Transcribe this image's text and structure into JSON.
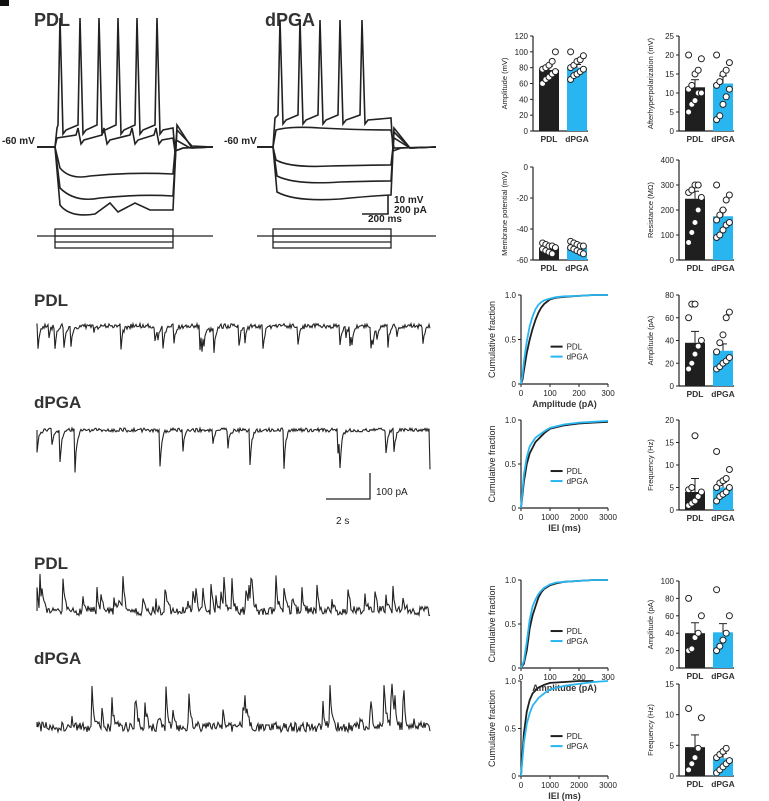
{
  "colors": {
    "pdl": "#1f1f1f",
    "dpga": "#29b6f0"
  },
  "panel_a": {
    "title_pdl": "PDL",
    "title_dpga": "dPGA",
    "rest_label_pdl": "-60 mV",
    "rest_label_dpga": "-60 mV",
    "scale_v": "10 mV",
    "scale_i": "200 pA",
    "scale_t": "200 ms"
  },
  "panel_b": {
    "title_pdl": "PDL",
    "title_dpga": "dPGA",
    "scale_y": "100 pA",
    "scale_x": "2 s"
  },
  "panel_c": {
    "title_pdl": "PDL",
    "title_dpga": "dPGA"
  },
  "chart_data": [
    {
      "type": "bar",
      "id": "ap-amplitude",
      "categories": [
        "PDL",
        "dPGA"
      ],
      "values": [
        77,
        80
      ],
      "errors": [
        5,
        4
      ],
      "points": [
        [
          60,
          65,
          68,
          72,
          75,
          78,
          80,
          83,
          88,
          100
        ],
        [
          65,
          70,
          72,
          75,
          78,
          80,
          83,
          88,
          90,
          95,
          100
        ]
      ],
      "ylabel": "Amplitude (mV)",
      "ylim": [
        0,
        120
      ],
      "yticks": [
        0,
        20,
        40,
        60,
        80,
        100,
        120
      ]
    },
    {
      "type": "bar",
      "id": "afterhyperpolarization",
      "categories": [
        "PDL",
        "dPGA"
      ],
      "values": [
        11.5,
        12.5
      ],
      "errors": [
        2,
        2
      ],
      "points": [
        [
          5,
          7,
          8,
          10,
          10,
          11,
          12,
          15,
          16,
          19,
          20
        ],
        [
          3,
          4,
          7,
          9,
          11,
          12,
          13,
          15,
          16,
          18,
          20
        ]
      ],
      "ylabel": "Afterhyperpolarization (mV)",
      "ylim": [
        0,
        25
      ],
      "yticks": [
        0,
        5,
        10,
        15,
        20,
        25
      ]
    },
    {
      "type": "bar",
      "id": "membrane-potential",
      "categories": [
        "PDL",
        "dPGA"
      ],
      "values": [
        -52,
        -52
      ],
      "errors": [
        1.5,
        1.5
      ],
      "points": [
        [
          -49,
          -50,
          -51,
          -51,
          -52,
          -53,
          -54,
          -55,
          -56
        ],
        [
          -48,
          -49,
          -50,
          -51,
          -51,
          -52,
          -53,
          -54,
          -55,
          -56
        ]
      ],
      "ylabel": "Membrane potential (mV)",
      "ylim": [
        -60,
        0
      ],
      "yticks": [
        -60,
        -40,
        -20,
        0
      ]
    },
    {
      "type": "bar",
      "id": "resistance",
      "categories": [
        "PDL",
        "dPGA"
      ],
      "values": [
        245,
        175
      ],
      "errors": [
        30,
        25
      ],
      "points": [
        [
          70,
          110,
          150,
          200,
          250,
          270,
          280,
          300,
          300
        ],
        [
          90,
          100,
          120,
          140,
          150,
          160,
          180,
          200,
          240,
          260,
          300
        ]
      ],
      "ylabel": "Resistance (MΩ)",
      "ylim": [
        0,
        400
      ],
      "yticks": [
        0,
        100,
        200,
        300,
        400
      ]
    },
    {
      "type": "line",
      "id": "b-cumulative-amplitude",
      "series": [
        {
          "name": "PDL",
          "x": [
            0,
            5,
            10,
            20,
            30,
            40,
            50,
            60,
            70,
            80,
            100,
            120,
            150,
            200,
            250,
            300
          ],
          "y": [
            0,
            0.05,
            0.15,
            0.35,
            0.5,
            0.62,
            0.72,
            0.8,
            0.86,
            0.9,
            0.95,
            0.97,
            0.98,
            0.99,
            1,
            1
          ]
        },
        {
          "name": "dPGA",
          "x": [
            0,
            5,
            10,
            20,
            30,
            40,
            50,
            60,
            70,
            80,
            100,
            120,
            150,
            200,
            250,
            300
          ],
          "y": [
            0,
            0.1,
            0.25,
            0.48,
            0.65,
            0.76,
            0.84,
            0.89,
            0.92,
            0.94,
            0.96,
            0.975,
            0.985,
            0.99,
            1,
            1
          ]
        }
      ],
      "xlabel": "Amplitude (pA)",
      "ylabel": "Cumulative fraction",
      "xlim": [
        0,
        300
      ],
      "ylim": [
        0,
        1
      ],
      "xticks": [
        0,
        100,
        200,
        300
      ],
      "yticks": [
        0,
        0.5,
        1.0
      ]
    },
    {
      "type": "bar",
      "id": "b-amplitude",
      "categories": [
        "PDL",
        "dPGA"
      ],
      "values": [
        38,
        31
      ],
      "errors": [
        10,
        6
      ],
      "points": [
        [
          15,
          20,
          28,
          35,
          40,
          60,
          72,
          72
        ],
        [
          15,
          17,
          20,
          22,
          25,
          30,
          38,
          45,
          60,
          65
        ]
      ],
      "ylabel": "Amplitude (pA)",
      "ylim": [
        0,
        80
      ],
      "yticks": [
        0,
        20,
        40,
        60,
        80
      ]
    },
    {
      "type": "line",
      "id": "b-cumulative-iei",
      "series": [
        {
          "name": "PDL",
          "x": [
            0,
            50,
            100,
            200,
            300,
            500,
            800,
            1000,
            1500,
            2000,
            2500,
            3000
          ],
          "y": [
            0,
            0.15,
            0.3,
            0.5,
            0.62,
            0.75,
            0.85,
            0.9,
            0.94,
            0.96,
            0.97,
            0.98
          ]
        },
        {
          "name": "dPGA",
          "x": [
            0,
            50,
            100,
            200,
            300,
            500,
            800,
            1000,
            1500,
            2000,
            2500,
            3000
          ],
          "y": [
            0,
            0.2,
            0.38,
            0.58,
            0.7,
            0.8,
            0.87,
            0.91,
            0.95,
            0.97,
            0.98,
            0.99
          ]
        }
      ],
      "xlabel": "IEI (ms)",
      "ylabel": "Cumulative fraction",
      "xlim": [
        0,
        3000
      ],
      "ylim": [
        0,
        1
      ],
      "xticks": [
        0,
        1000,
        2000,
        3000
      ],
      "yticks": [
        0,
        0.5,
        1.0
      ]
    },
    {
      "type": "bar",
      "id": "b-frequency",
      "categories": [
        "PDL",
        "dPGA"
      ],
      "values": [
        4,
        5
      ],
      "errors": [
        3,
        1.2
      ],
      "points": [
        [
          1,
          1.5,
          2,
          3,
          4,
          4.5,
          5,
          16.5
        ],
        [
          2,
          3,
          3.5,
          4,
          5,
          5,
          6,
          6.5,
          7,
          9,
          13
        ]
      ],
      "ylabel": "Frequency (Hz)",
      "ylim": [
        0,
        20
      ],
      "yticks": [
        0,
        5,
        10,
        15,
        20
      ]
    },
    {
      "type": "line",
      "id": "c-cumulative-amplitude",
      "series": [
        {
          "name": "PDL",
          "x": [
            0,
            10,
            20,
            30,
            40,
            50,
            60,
            70,
            80,
            100,
            120,
            150,
            200,
            250,
            300
          ],
          "y": [
            0,
            0.05,
            0.2,
            0.45,
            0.6,
            0.7,
            0.8,
            0.86,
            0.9,
            0.94,
            0.96,
            0.98,
            0.99,
            1,
            1
          ]
        },
        {
          "name": "dPGA",
          "x": [
            0,
            10,
            20,
            30,
            40,
            50,
            60,
            70,
            80,
            100,
            120,
            150,
            200,
            250,
            300
          ],
          "y": [
            0,
            0.08,
            0.3,
            0.55,
            0.7,
            0.78,
            0.84,
            0.88,
            0.91,
            0.95,
            0.97,
            0.98,
            0.99,
            1,
            1
          ]
        }
      ],
      "xlabel": "Amplitude (pA)",
      "ylabel": "Cumulative fraction",
      "xlim": [
        0,
        300
      ],
      "ylim": [
        0,
        1
      ],
      "xticks": [
        0,
        100,
        200,
        300
      ],
      "yticks": [
        0,
        0.5,
        1.0
      ]
    },
    {
      "type": "bar",
      "id": "c-amplitude",
      "categories": [
        "PDL",
        "dPGA"
      ],
      "values": [
        40,
        41
      ],
      "errors": [
        12,
        10
      ],
      "points": [
        [
          20,
          22,
          35,
          40,
          60,
          80
        ],
        [
          20,
          25,
          32,
          40,
          60,
          90
        ]
      ],
      "ylabel": "Amplitude (pA)",
      "ylim": [
        0,
        100
      ],
      "yticks": [
        0,
        20,
        40,
        60,
        80,
        100
      ]
    },
    {
      "type": "line",
      "id": "c-cumulative-iei",
      "series": [
        {
          "name": "PDL",
          "x": [
            0,
            100,
            200,
            300,
            400,
            600,
            800,
            1000,
            1500,
            2000,
            2500
          ],
          "y": [
            0,
            0.45,
            0.68,
            0.8,
            0.87,
            0.93,
            0.96,
            0.98,
            0.99,
            1,
            1
          ]
        },
        {
          "name": "dPGA",
          "x": [
            0,
            100,
            200,
            300,
            400,
            600,
            800,
            1000,
            1500,
            2000,
            2500,
            3000
          ],
          "y": [
            0,
            0.35,
            0.55,
            0.66,
            0.74,
            0.82,
            0.87,
            0.91,
            0.95,
            0.97,
            0.99,
            1
          ]
        }
      ],
      "xlabel": "IEI (ms)",
      "ylabel": "Cumulative fraction",
      "xlim": [
        0,
        3000
      ],
      "ylim": [
        0,
        1
      ],
      "xticks": [
        0,
        1000,
        2000,
        3000
      ],
      "yticks": [
        0,
        0.5,
        1.0
      ]
    },
    {
      "type": "bar",
      "id": "c-frequency",
      "categories": [
        "PDL",
        "dPGA"
      ],
      "values": [
        4.7,
        2.9
      ],
      "errors": [
        2,
        0.8
      ],
      "points": [
        [
          1,
          2,
          3,
          4.5,
          9.5,
          11
        ],
        [
          0.5,
          1,
          1.5,
          2,
          2.5,
          3,
          3.5,
          4,
          4.5
        ]
      ],
      "ylabel": "Frequency (Hz)",
      "ylim": [
        0,
        15
      ],
      "yticks": [
        0,
        5,
        10,
        15
      ]
    }
  ]
}
